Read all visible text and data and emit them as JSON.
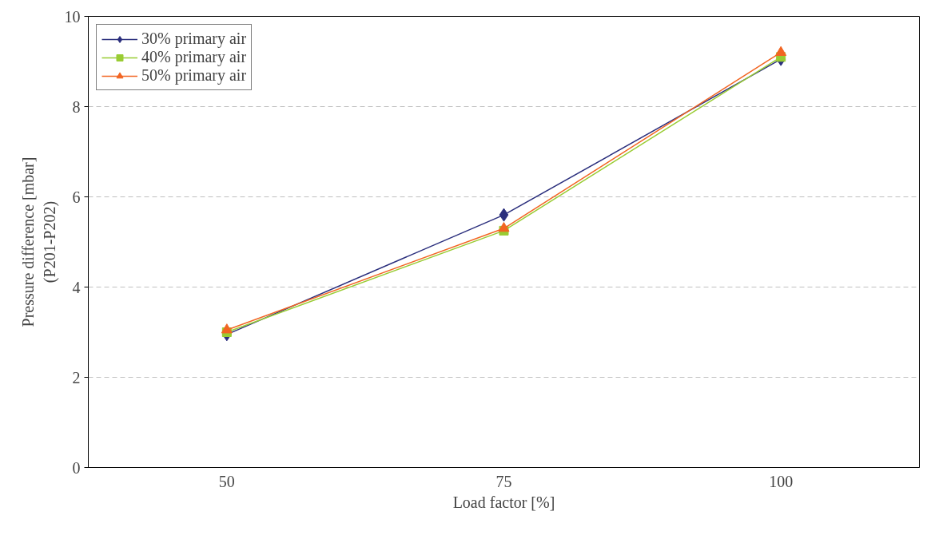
{
  "chart_data": {
    "type": "line",
    "xlabel": "Load factor [%]",
    "ylabel": "Pressure difference [mbar]\n(P201-P202)",
    "categories": [
      "50",
      "75",
      "100"
    ],
    "series": [
      {
        "name": "30% primary air",
        "color": "#2b2f7d",
        "marker": "diamond",
        "values": [
          2.95,
          5.6,
          9.05
        ]
      },
      {
        "name": "40% primary air",
        "color": "#99cc33",
        "marker": "square",
        "values": [
          3.0,
          5.25,
          9.1
        ]
      },
      {
        "name": "50% primary air",
        "color": "#f26522",
        "marker": "triangle",
        "values": [
          3.05,
          5.3,
          9.2
        ]
      }
    ],
    "ylim": [
      0,
      10
    ],
    "yticks": [
      0,
      2,
      4,
      6,
      8,
      10
    ],
    "grid": "y",
    "legend": "top left",
    "line_style": "solid"
  }
}
